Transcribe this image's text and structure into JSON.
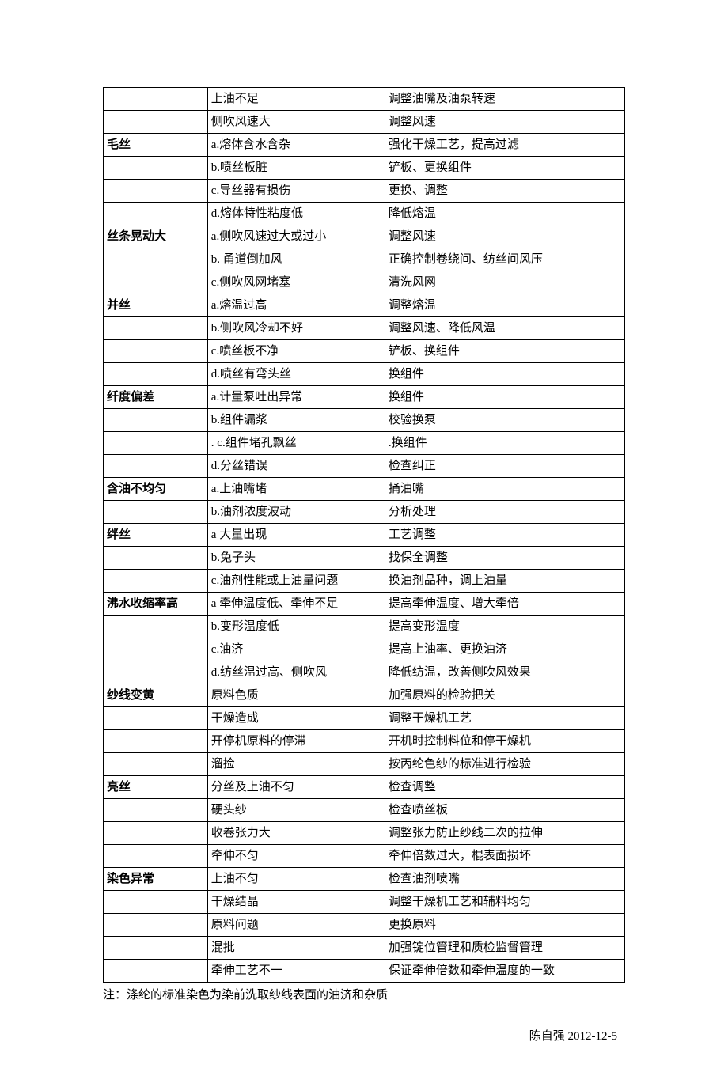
{
  "table": {
    "col1_width_pct": 20,
    "col2_width_pct": 34,
    "col3_width_pct": 46,
    "border_color": "#000000",
    "font_size": 15,
    "rows": [
      {
        "c1": "",
        "c1_bold": false,
        "c2": "上油不足",
        "c3": "调整油嘴及油泵转速"
      },
      {
        "c1": "",
        "c1_bold": false,
        "c2": "侧吹风速大",
        "c3": "调整风速"
      },
      {
        "c1": "毛丝",
        "c1_bold": true,
        "c2": "a.熔体含水含杂",
        "c3": "强化干燥工艺，提高过滤"
      },
      {
        "c1": "",
        "c1_bold": false,
        "c2": "b.喷丝板脏",
        "c3": "铲板、更换组件"
      },
      {
        "c1": "",
        "c1_bold": false,
        "c2": "c.导丝器有损伤",
        "c3": "更换、调整"
      },
      {
        "c1": "",
        "c1_bold": false,
        "c2": "d.熔体特性粘度低",
        "c3": "降低熔温"
      },
      {
        "c1": "丝条晃动大",
        "c1_bold": true,
        "c2": "a.侧吹风速过大或过小",
        "c3": "调整风速"
      },
      {
        "c1": "",
        "c1_bold": false,
        "c2": "b. 甬道倒加风",
        "c3": "正确控制卷绕间、纺丝间风压"
      },
      {
        "c1": "",
        "c1_bold": false,
        "c2": "c.侧吹风网堵塞",
        "c3": "清洗风网"
      },
      {
        "c1": "并丝",
        "c1_bold": true,
        "c2": "a.熔温过高",
        "c3": "调整熔温"
      },
      {
        "c1": "",
        "c1_bold": false,
        "c2": "b.侧吹风冷却不好",
        "c3": "调整风速、降低风温"
      },
      {
        "c1": "",
        "c1_bold": false,
        "c2": "c.喷丝板不净",
        "c3": "铲板、换组件"
      },
      {
        "c1": "",
        "c1_bold": false,
        "c2": "d.喷丝有弯头丝",
        "c3": "换组件"
      },
      {
        "c1": "纤度偏差",
        "c1_bold": true,
        "c2": "a.计量泵吐出异常",
        "c3": "换组件"
      },
      {
        "c1": "",
        "c1_bold": false,
        "c2": "b.组件漏浆",
        "c3": "校验换泵"
      },
      {
        "c1": "",
        "c1_bold": false,
        "c2": ". c.组件堵孔飘丝",
        "c3": ".换组件"
      },
      {
        "c1": "",
        "c1_bold": false,
        "c2": "d.分丝错误",
        "c3": "检查纠正"
      },
      {
        "c1": "含油不均匀",
        "c1_bold": true,
        "c2": "a.上油嘴堵",
        "c3": "捅油嘴"
      },
      {
        "c1": "",
        "c1_bold": false,
        "c2": "b.油剂浓度波动",
        "c3": "分析处理"
      },
      {
        "c1": "绊丝",
        "c1_bold": true,
        "c2": "a 大量出现",
        "c3": "工艺调整"
      },
      {
        "c1": "",
        "c1_bold": false,
        "c2": "b.兔子头",
        "c3": "找保全调整"
      },
      {
        "c1": "",
        "c1_bold": false,
        "c2": "c.油剂性能或上油量问题",
        "c3": "换油剂品种，调上油量"
      },
      {
        "c1": "沸水收缩率高",
        "c1_bold": true,
        "c2": "a 牵伸温度低、牵伸不足",
        "c3": "提高牵伸温度、增大牵倍"
      },
      {
        "c1": "",
        "c1_bold": false,
        "c2": "b.变形温度低",
        "c3": "提高变形温度"
      },
      {
        "c1": "",
        "c1_bold": false,
        "c2": "c.油济",
        "c3": "提高上油率、更换油济"
      },
      {
        "c1": "",
        "c1_bold": false,
        "c2": "d.纺丝温过高、侧吹风",
        "c3": "降低纺温，改善侧吹风效果"
      },
      {
        "c1": "纱线变黄",
        "c1_bold": true,
        "c2": "原料色质",
        "c3": "加强原料的检验把关"
      },
      {
        "c1": "",
        "c1_bold": false,
        "c2": "干燥造成",
        "c3": "调整干燥机工艺"
      },
      {
        "c1": "",
        "c1_bold": false,
        "c2": "开停机原料的停滞",
        "c3": "开机时控制料位和停干燥机"
      },
      {
        "c1": "",
        "c1_bold": false,
        "c2": "溜捡",
        "c3": "按丙纶色纱的标准进行检验"
      },
      {
        "c1": "亮丝",
        "c1_bold": true,
        "c2": "分丝及上油不匀",
        "c3": "检查调整"
      },
      {
        "c1": "",
        "c1_bold": false,
        "c2": "硬头纱",
        "c3": "检查喷丝板"
      },
      {
        "c1": "",
        "c1_bold": false,
        "c2": "收卷张力大",
        "c3": "调整张力防止纱线二次的拉伸"
      },
      {
        "c1": "",
        "c1_bold": false,
        "c2": "牵伸不匀",
        "c3": "牵伸倍数过大，棍表面损坏"
      },
      {
        "c1": "染色异常",
        "c1_bold": true,
        "c2": "上油不匀",
        "c3": "检查油剂喷嘴"
      },
      {
        "c1": "",
        "c1_bold": false,
        "c2": "干燥结晶",
        "c3": "调整干燥机工艺和辅料均匀"
      },
      {
        "c1": "",
        "c1_bold": false,
        "c2": "原料问题",
        "c3": "更换原料"
      },
      {
        "c1": "",
        "c1_bold": false,
        "c2": "混批",
        "c3": "加强锭位管理和质检监督管理"
      },
      {
        "c1": "",
        "c1_bold": false,
        "c2": "牵伸工艺不一",
        "c3": "保证牵伸倍数和牵伸温度的一致"
      }
    ]
  },
  "note": "注：涤纶的标准染色为染前洗取纱线表面的油济和杂质",
  "signoff": "陈自强 2012-12-5"
}
